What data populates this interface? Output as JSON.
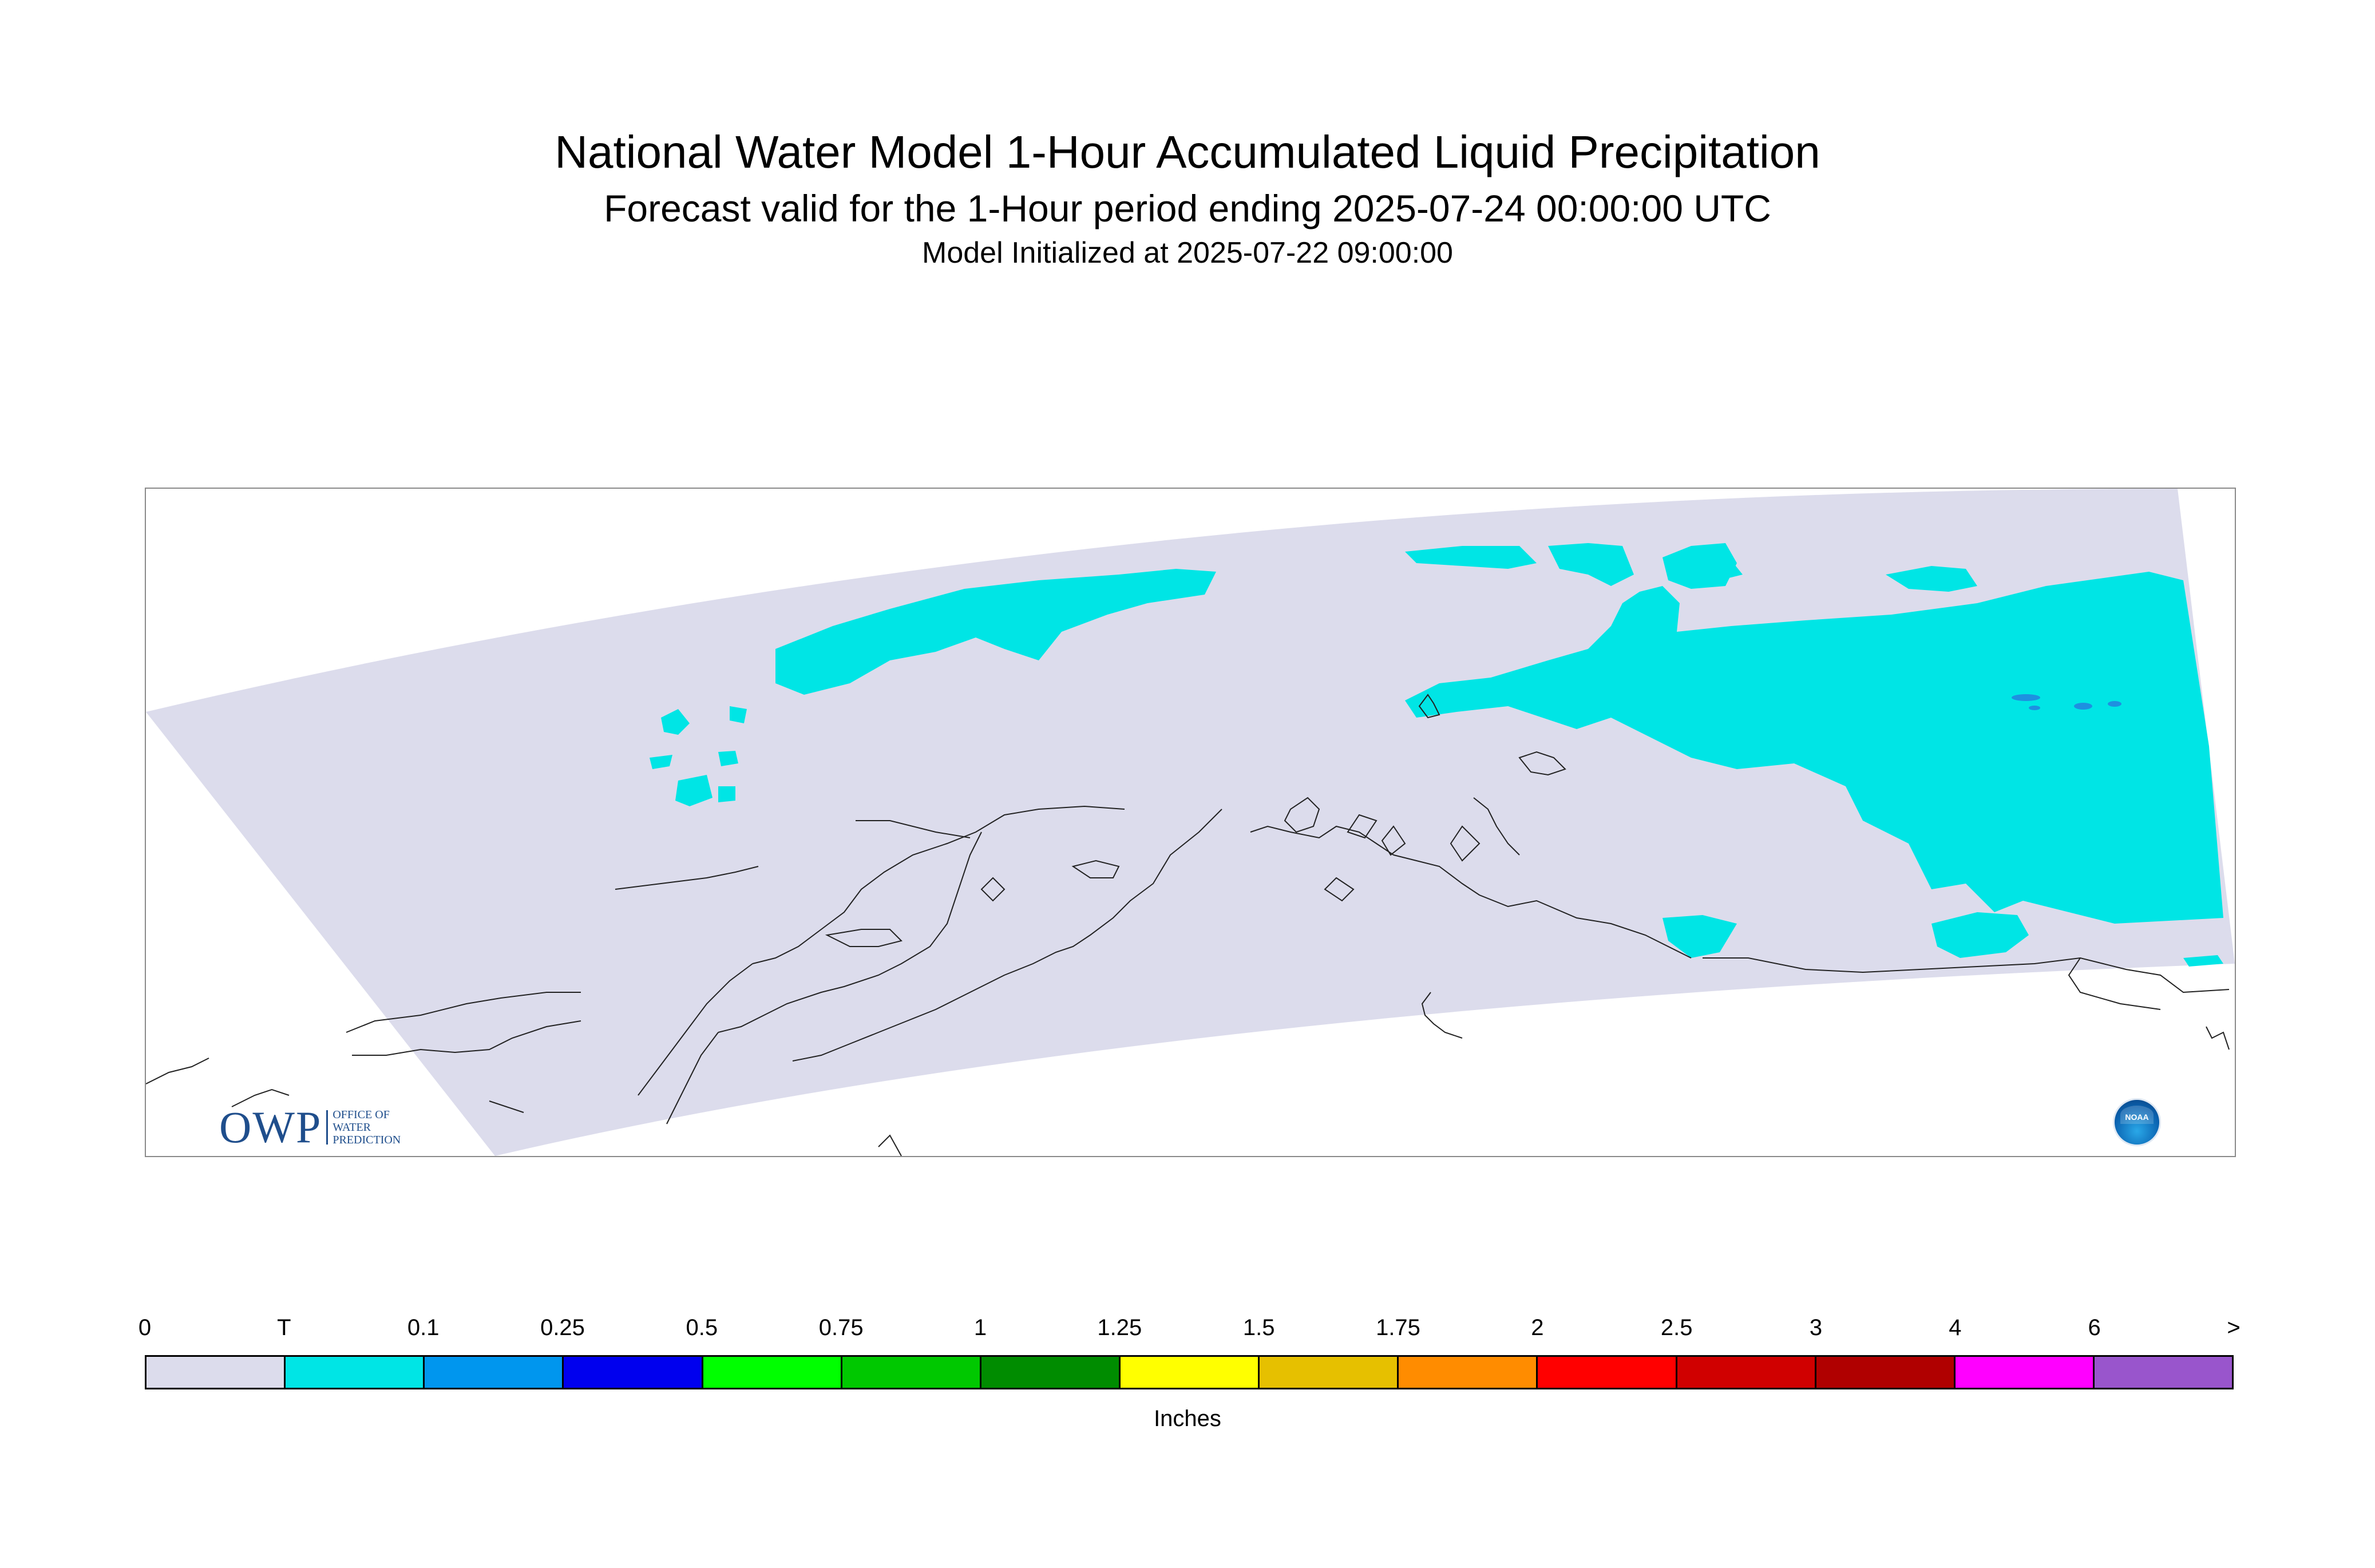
{
  "titles": {
    "main": "National Water Model 1-Hour Accumulated Liquid Precipitation",
    "forecast": "Forecast valid for the 1-Hour period ending 2025-07-24 00:00:00 UTC",
    "init": "Model Initialized at 2025-07-22 09:00:00"
  },
  "logos": {
    "owp_main": "OWP",
    "owp_sub_1": "OFFICE OF",
    "owp_sub_2": "WATER",
    "owp_sub_3": "PREDICTION",
    "noaa": "NOAA"
  },
  "colors": {
    "domain_fill": "#dcdcec",
    "trace_fill": "#00e5e5",
    "light_blue": "#1e90e0",
    "coastline": "#222222"
  },
  "legend": {
    "units": "Inches",
    "tick_labels": [
      "0",
      "T",
      "0.1",
      "0.25",
      "0.5",
      "0.75",
      "1",
      "1.25",
      "1.5",
      "1.75",
      "2",
      "2.5",
      "3",
      "4",
      "6",
      ">"
    ],
    "bins": [
      {
        "color": "#dcdcec"
      },
      {
        "color": "#00e5e5"
      },
      {
        "color": "#0096ee"
      },
      {
        "color": "#0000ee"
      },
      {
        "color": "#00ff00"
      },
      {
        "color": "#00c800"
      },
      {
        "color": "#008c00"
      },
      {
        "color": "#ffff00"
      },
      {
        "color": "#e6c000"
      },
      {
        "color": "#ff8c00"
      },
      {
        "color": "#ff0000"
      },
      {
        "color": "#d00000"
      },
      {
        "color": "#b00000"
      },
      {
        "color": "#ff00ff"
      },
      {
        "color": "#9955cc"
      }
    ]
  }
}
